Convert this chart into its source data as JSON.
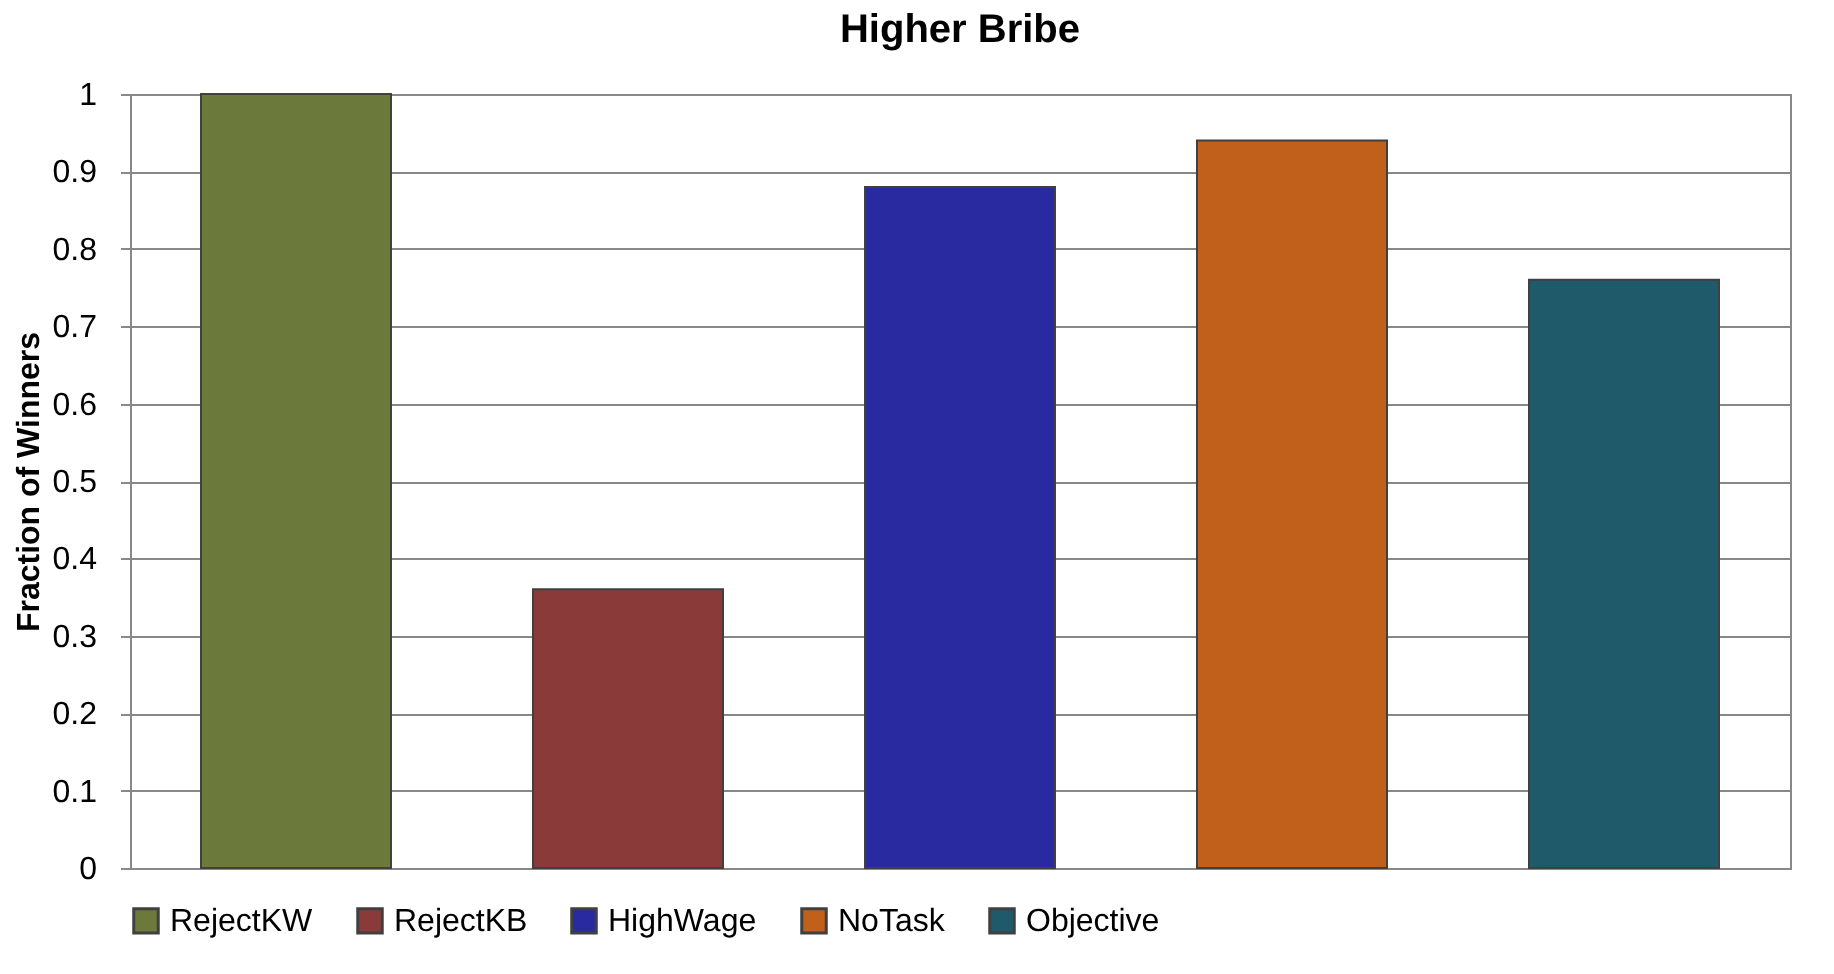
{
  "chart_data": {
    "type": "bar",
    "title": "Higher Bribe",
    "ylabel": "Fraction of Winners",
    "categories": [
      null,
      null,
      null,
      null,
      null
    ],
    "series": [
      {
        "name": "RejectKW",
        "color": "#6b7a3a",
        "values": [
          1.0,
          null,
          null,
          null,
          null
        ]
      },
      {
        "name": "RejectKB",
        "color": "#8b3a3a",
        "values": [
          null,
          0.36,
          null,
          null,
          null
        ]
      },
      {
        "name": "HighWage",
        "color": "#2a2aa0",
        "values": [
          null,
          null,
          0.88,
          null,
          null
        ]
      },
      {
        "name": "NoTask",
        "color": "#c0601a",
        "values": [
          null,
          null,
          null,
          0.94,
          null
        ]
      },
      {
        "name": "Objective",
        "color": "#1f5a6a",
        "values": [
          null,
          null,
          null,
          null,
          0.76
        ]
      }
    ],
    "ylim": [
      0,
      1
    ],
    "yticks": [
      0,
      0.1,
      0.2,
      0.3,
      0.4,
      0.5,
      0.6,
      0.7,
      0.8,
      0.9,
      1
    ],
    "grid": "y",
    "legend": "bottom"
  }
}
